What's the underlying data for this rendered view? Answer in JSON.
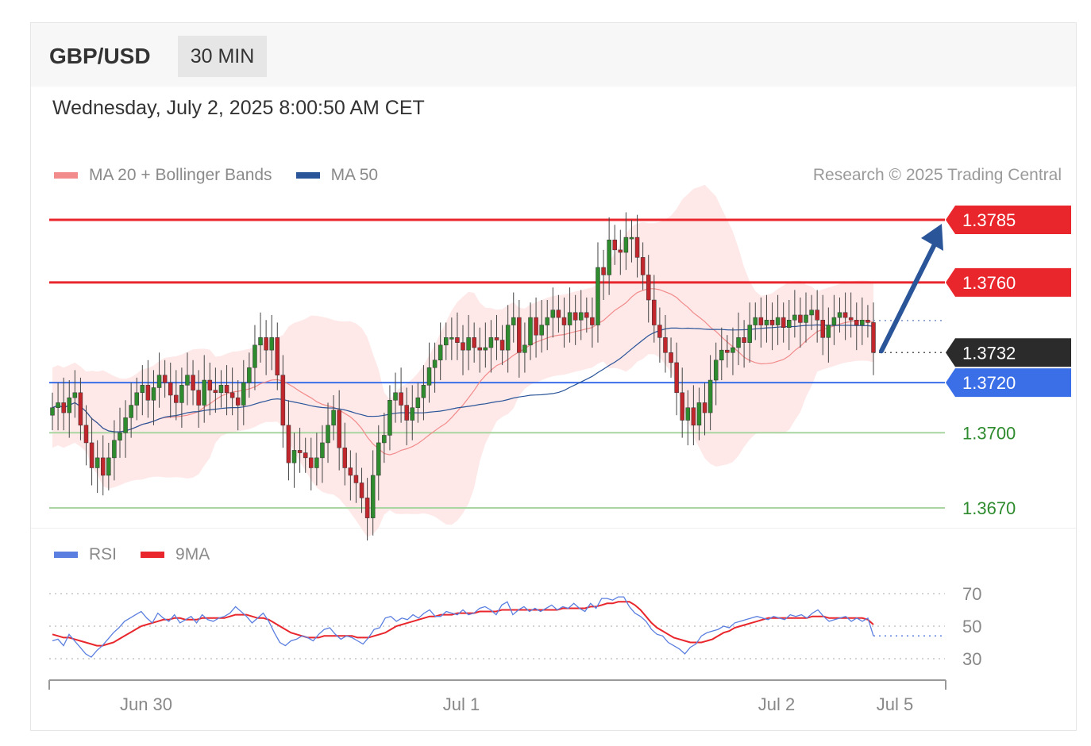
{
  "header": {
    "symbol": "GBP/USD",
    "timeframe": "30 MIN"
  },
  "timestamp": "Wednesday, July 2, 2025 8:00:50 AM CET",
  "legend": {
    "ma20": {
      "label": "MA 20 + Bollinger Bands",
      "color": "#f28b8b"
    },
    "ma50": {
      "label": "MA 50",
      "color": "#2a5599"
    }
  },
  "copyright": "Research © 2025 Trading Central",
  "rsi_legend": {
    "rsi": {
      "label": "RSI",
      "color": "#5b7fe0"
    },
    "ma9": {
      "label": "9MA",
      "color": "#e8262c"
    }
  },
  "colors": {
    "resistance": "#e8262c",
    "pivot": "#3b6fe8",
    "support": "#2e8b2e",
    "last": "#2b2b2b",
    "up_candle": "#2e8b2e",
    "down_candle": "#c0262c",
    "band": "#fde0e0",
    "arrow": "#2a5599"
  },
  "chart_data": [
    {
      "type": "candlestick",
      "instrument": "GBP/USD",
      "timeframe": "30 MIN",
      "ylim": [
        1.3656,
        1.3802
      ],
      "x_ticks": [
        "Jun 30",
        "Jul 1",
        "Jul 2",
        "Jul 5"
      ],
      "levels": [
        {
          "value": 1.3785,
          "label": "1.3785",
          "kind": "resistance"
        },
        {
          "value": 1.376,
          "label": "1.3760",
          "kind": "resistance"
        },
        {
          "value": 1.3732,
          "label": "1.3732",
          "kind": "last"
        },
        {
          "value": 1.372,
          "label": "1.3720",
          "kind": "pivot"
        },
        {
          "value": 1.37,
          "label": "1.3700",
          "kind": "support"
        },
        {
          "value": 1.367,
          "label": "1.3670",
          "kind": "support"
        }
      ],
      "close": [
        1.371,
        1.3712,
        1.3708,
        1.3714,
        1.3716,
        1.3703,
        1.3696,
        1.3686,
        1.369,
        1.3683,
        1.369,
        1.3697,
        1.37,
        1.3706,
        1.3711,
        1.3716,
        1.3719,
        1.3713,
        1.3718,
        1.3723,
        1.372,
        1.3715,
        1.3712,
        1.3719,
        1.3723,
        1.3717,
        1.3711,
        1.3721,
        1.3717,
        1.3716,
        1.3719,
        1.3716,
        1.3714,
        1.3711,
        1.372,
        1.3726,
        1.3735,
        1.3738,
        1.3733,
        1.3738,
        1.3723,
        1.3703,
        1.3688,
        1.3693,
        1.3692,
        1.369,
        1.3686,
        1.369,
        1.3696,
        1.3703,
        1.3709,
        1.3694,
        1.3686,
        1.3683,
        1.368,
        1.3674,
        1.3666,
        1.3683,
        1.3696,
        1.3699,
        1.3713,
        1.3716,
        1.3711,
        1.3705,
        1.371,
        1.3714,
        1.3719,
        1.3726,
        1.3729,
        1.3735,
        1.3738,
        1.3738,
        1.3736,
        1.3733,
        1.3738,
        1.3734,
        1.3733,
        1.3734,
        1.3738,
        1.3737,
        1.3733,
        1.3743,
        1.3746,
        1.3732,
        1.3735,
        1.3746,
        1.3739,
        1.3743,
        1.3746,
        1.3749,
        1.3746,
        1.3743,
        1.3748,
        1.3745,
        1.3748,
        1.3746,
        1.3743,
        1.3766,
        1.3763,
        1.3777,
        1.3773,
        1.3772,
        1.3778,
        1.3778,
        1.377,
        1.3763,
        1.3753,
        1.3743,
        1.3738,
        1.3732,
        1.3728,
        1.3716,
        1.3705,
        1.371,
        1.3703,
        1.3712,
        1.3708,
        1.3721,
        1.3729,
        1.3733,
        1.3732,
        1.3734,
        1.3738,
        1.3736,
        1.3743,
        1.3746,
        1.3743,
        1.3745,
        1.3743,
        1.3746,
        1.3742,
        1.3745,
        1.3747,
        1.3744,
        1.3747,
        1.3749,
        1.3745,
        1.3738,
        1.3743,
        1.3746,
        1.3748,
        1.3746,
        1.3745,
        1.3743,
        1.3745,
        1.3744,
        1.3732
      ]
    },
    {
      "type": "line",
      "name": "RSI",
      "ylim": [
        20,
        80
      ],
      "y_ticks": [
        70,
        50,
        30
      ],
      "series": [
        {
          "name": "RSI",
          "values": [
            41,
            42,
            38,
            45,
            41,
            37,
            33,
            31,
            35,
            38,
            42,
            46,
            49,
            53,
            55,
            57,
            59,
            55,
            52,
            58,
            55,
            53,
            57,
            52,
            54,
            56,
            52,
            57,
            54,
            53,
            55,
            56,
            58,
            62,
            59,
            56,
            52,
            55,
            58,
            53,
            46,
            40,
            38,
            41,
            42,
            44,
            43,
            41,
            45,
            48,
            49,
            45,
            42,
            44,
            43,
            41,
            39,
            43,
            48,
            49,
            55,
            56,
            53,
            55,
            54,
            57,
            55,
            58,
            60,
            56,
            56,
            59,
            58,
            57,
            60,
            57,
            58,
            61,
            62,
            60,
            57,
            63,
            65,
            57,
            60,
            62,
            59,
            61,
            59,
            61,
            63,
            60,
            62,
            61,
            64,
            61,
            59,
            64,
            61,
            67,
            67,
            66,
            68,
            68,
            62,
            58,
            56,
            53,
            48,
            45,
            44,
            40,
            38,
            36,
            33,
            37,
            39,
            44,
            46,
            47,
            48,
            50,
            49,
            52,
            53,
            54,
            55,
            56,
            55,
            54,
            56,
            55,
            54,
            57,
            56,
            57,
            55,
            58,
            60,
            56,
            53,
            54,
            55,
            56,
            53,
            55,
            53,
            55,
            44
          ]
        },
        {
          "name": "9MA",
          "values": [
            45,
            44,
            43,
            43,
            42,
            41,
            40,
            39,
            38,
            38,
            39,
            40,
            42,
            44,
            46,
            48,
            50,
            51,
            52,
            53,
            54,
            54,
            55,
            55,
            54,
            54,
            54,
            55,
            55,
            55,
            55,
            55,
            56,
            57,
            57,
            57,
            56,
            55,
            55,
            54,
            52,
            50,
            48,
            46,
            45,
            44,
            43,
            43,
            43,
            44,
            44,
            44,
            44,
            44,
            44,
            43,
            43,
            43,
            44,
            45,
            46,
            48,
            50,
            51,
            52,
            53,
            54,
            55,
            56,
            56,
            57,
            57,
            57,
            58,
            58,
            58,
            58,
            59,
            59,
            59,
            59,
            60,
            60,
            60,
            60,
            60,
            60,
            60,
            60,
            60,
            60,
            60,
            61,
            61,
            61,
            61,
            61,
            62,
            62,
            63,
            64,
            64,
            65,
            65,
            65,
            63,
            60,
            56,
            52,
            49,
            47,
            45,
            43,
            42,
            41,
            40,
            40,
            40,
            41,
            42,
            44,
            46,
            47,
            49,
            50,
            51,
            52,
            53,
            54,
            55,
            55,
            55,
            55,
            55,
            55,
            55,
            55,
            56,
            56,
            56,
            55,
            55,
            55,
            55,
            55,
            55,
            55,
            54,
            51
          ]
        }
      ]
    }
  ]
}
